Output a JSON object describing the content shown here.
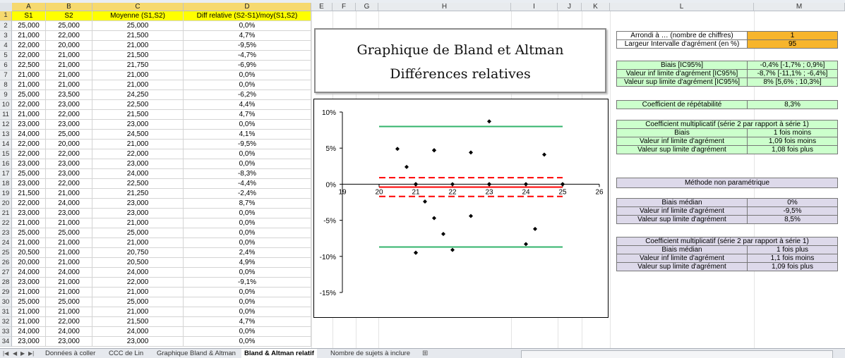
{
  "columns": [
    "A",
    "B",
    "C",
    "D",
    "E",
    "F",
    "G",
    "H",
    "I",
    "J",
    "K",
    "L",
    "M"
  ],
  "headers": {
    "s1": "S1",
    "s2": "S2",
    "moy": "Moyenne (S1,S2)",
    "diff": "Diff relative (S2-S1)/moy(S1,S2)"
  },
  "rows": [
    [
      "2",
      "25,000",
      "25,000",
      "25,000",
      "0,0%"
    ],
    [
      "3",
      "21,000",
      "22,000",
      "21,500",
      "4,7%"
    ],
    [
      "4",
      "22,000",
      "20,000",
      "21,000",
      "-9,5%"
    ],
    [
      "5",
      "22,000",
      "21,000",
      "21,500",
      "-4,7%"
    ],
    [
      "6",
      "22,500",
      "21,000",
      "21,750",
      "-6,9%"
    ],
    [
      "7",
      "21,000",
      "21,000",
      "21,000",
      "0,0%"
    ],
    [
      "8",
      "21,000",
      "21,000",
      "21,000",
      "0,0%"
    ],
    [
      "9",
      "25,000",
      "23,500",
      "24,250",
      "-6,2%"
    ],
    [
      "10",
      "22,000",
      "23,000",
      "22,500",
      "4,4%"
    ],
    [
      "11",
      "21,000",
      "22,000",
      "21,500",
      "4,7%"
    ],
    [
      "12",
      "23,000",
      "23,000",
      "23,000",
      "0,0%"
    ],
    [
      "13",
      "24,000",
      "25,000",
      "24,500",
      "4,1%"
    ],
    [
      "14",
      "22,000",
      "20,000",
      "21,000",
      "-9,5%"
    ],
    [
      "15",
      "22,000",
      "22,000",
      "22,000",
      "0,0%"
    ],
    [
      "16",
      "23,000",
      "23,000",
      "23,000",
      "0,0%"
    ],
    [
      "17",
      "25,000",
      "23,000",
      "24,000",
      "-8,3%"
    ],
    [
      "18",
      "23,000",
      "22,000",
      "22,500",
      "-4,4%"
    ],
    [
      "19",
      "21,500",
      "21,000",
      "21,250",
      "-2,4%"
    ],
    [
      "20",
      "22,000",
      "24,000",
      "23,000",
      "8,7%"
    ],
    [
      "21",
      "23,000",
      "23,000",
      "23,000",
      "0,0%"
    ],
    [
      "22",
      "21,000",
      "21,000",
      "21,000",
      "0,0%"
    ],
    [
      "23",
      "25,000",
      "25,000",
      "25,000",
      "0,0%"
    ],
    [
      "24",
      "21,000",
      "21,000",
      "21,000",
      "0,0%"
    ],
    [
      "25",
      "20,500",
      "21,000",
      "20,750",
      "2,4%"
    ],
    [
      "26",
      "20,000",
      "21,000",
      "20,500",
      "4,9%"
    ],
    [
      "27",
      "24,000",
      "24,000",
      "24,000",
      "0,0%"
    ],
    [
      "28",
      "23,000",
      "21,000",
      "22,000",
      "-9,1%"
    ],
    [
      "29",
      "21,000",
      "21,000",
      "21,000",
      "0,0%"
    ],
    [
      "30",
      "25,000",
      "25,000",
      "25,000",
      "0,0%"
    ],
    [
      "31",
      "21,000",
      "21,000",
      "21,000",
      "0,0%"
    ],
    [
      "32",
      "21,000",
      "22,000",
      "21,500",
      "4,7%"
    ],
    [
      "33",
      "24,000",
      "24,000",
      "24,000",
      "0,0%"
    ],
    [
      "34",
      "23,000",
      "23,000",
      "23,000",
      "0,0%"
    ]
  ],
  "chart_title": {
    "line1": "Graphique de Bland et Altman",
    "line2": "Différences relatives"
  },
  "chart_data": {
    "type": "scatter",
    "x": [
      25,
      21.5,
      21,
      21.5,
      21.75,
      21,
      21,
      24.25,
      22.5,
      21.5,
      23,
      24.5,
      21,
      22,
      23,
      24,
      22.5,
      21.25,
      23,
      23,
      21,
      25,
      21,
      20.75,
      20.5,
      24,
      22,
      21,
      25,
      21,
      21.5,
      24,
      23
    ],
    "y": [
      0,
      4.7,
      -9.5,
      -4.7,
      -6.9,
      0,
      0,
      -6.2,
      4.4,
      4.7,
      0,
      4.1,
      -9.5,
      0,
      0,
      -8.3,
      -4.4,
      -2.4,
      8.7,
      0,
      0,
      0,
      0,
      2.4,
      4.9,
      0,
      -9.1,
      0,
      0,
      0,
      4.7,
      0,
      0
    ],
    "xlim": [
      19,
      26
    ],
    "ylim": [
      -15,
      10
    ],
    "xticks": [
      "19",
      "20",
      "21",
      "22",
      "23",
      "24",
      "25",
      "26"
    ],
    "yticks": [
      "10%",
      "5%",
      "0%",
      "-5%",
      "-10%",
      "-15%"
    ],
    "lines": {
      "bias": -0.4,
      "bias_ci": [
        -1.7,
        0.9
      ],
      "loa_low": -8.7,
      "loa_high": 8.0
    },
    "colors": {
      "bias": "#ff0000",
      "loa": "#33b36b",
      "points": "#000000"
    }
  },
  "settings": [
    {
      "label": "Arrondi à … (nombre de chiffres)",
      "value": "1"
    },
    {
      "label": "Largeur Intervalle d'agrément (en %)",
      "value": "95"
    }
  ],
  "stats": [
    {
      "label": "Biais [IC95%]",
      "value": "-0,4% [-1,7% ; 0,9%]"
    },
    {
      "label": "Valeur inf limite d'agrément [IC95%]",
      "value": "-8,7% [-11,1% ; -6,4%]"
    },
    {
      "label": "Valeur sup limite d'agrément [IC95%]",
      "value": "8% [5,6% ; 10,3%]"
    }
  ],
  "repeat": {
    "label": "Coefficient de répétabilité",
    "value": "8,3%"
  },
  "mult1": {
    "title": "Coefficient multiplicatif (série 2 par rapport à série 1)",
    "rows": [
      {
        "label": "Biais",
        "value": "1 fois moins"
      },
      {
        "label": "Valeur inf limite d'agrément",
        "value": "1,09 fois moins"
      },
      {
        "label": "Valeur sup limite d'agrément",
        "value": "1,08 fois plus"
      }
    ]
  },
  "np": {
    "title": "Méthode non paramétrique",
    "rows": [
      {
        "label": "Biais médian",
        "value": "0%"
      },
      {
        "label": "Valeur inf limite d'agrément",
        "value": "-9,5%"
      },
      {
        "label": "Valeur sup limite d'agrément",
        "value": "8,5%"
      }
    ]
  },
  "mult2": {
    "title": "Coefficient multiplicatif (série 2 par rapport à série 1)",
    "rows": [
      {
        "label": "Biais médian",
        "value": "1 fois plus"
      },
      {
        "label": "Valeur inf limite d'agrément",
        "value": "1,1 fois moins"
      },
      {
        "label": "Valeur sup limite d'agrément",
        "value": "1,09 fois plus"
      }
    ]
  },
  "tabs": [
    "Données à coller",
    "CCC de Lin",
    "Graphique Bland & Altman",
    "Bland & Altman relatif",
    "Nombre de sujets à inclure"
  ],
  "active_tab": "Bland & Altman relatif",
  "header_row_num": "1"
}
